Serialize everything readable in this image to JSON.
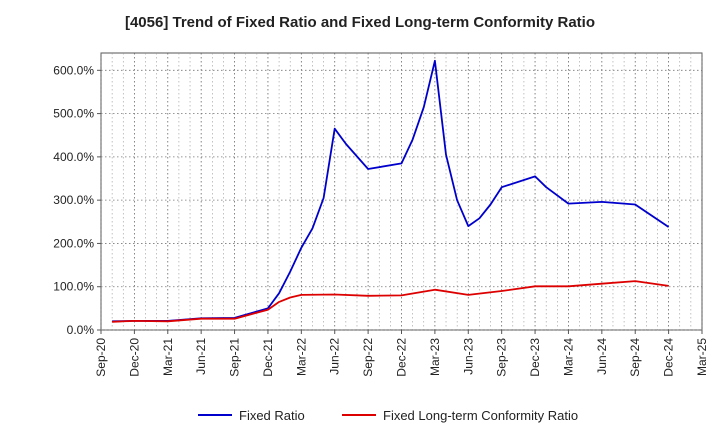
{
  "chart_data": {
    "type": "line",
    "title": "[4056]  Trend of Fixed Ratio and Fixed Long-term Conformity Ratio",
    "xlabel": "",
    "ylabel": "",
    "x_ticks": [
      "Sep-20",
      "Dec-20",
      "Mar-21",
      "Jun-21",
      "Sep-21",
      "Dec-21",
      "Mar-22",
      "Jun-22",
      "Sep-22",
      "Dec-22",
      "Mar-23",
      "Jun-23",
      "Sep-23",
      "Dec-23",
      "Mar-24",
      "Jun-24",
      "Sep-24",
      "Dec-24",
      "Mar-25"
    ],
    "xlim": [
      "2020-09",
      "2025-03"
    ],
    "y_ticks": [
      "0.0%",
      "100.0%",
      "200.0%",
      "300.0%",
      "400.0%",
      "500.0%",
      "600.0%"
    ],
    "ylim": [
      0,
      640
    ],
    "grid": true,
    "legend_position": "bottom",
    "series": [
      {
        "name": "Fixed Ratio",
        "color": "#0000cc",
        "points": [
          [
            "2020-10",
            20
          ],
          [
            "2020-12",
            21
          ],
          [
            "2021-03",
            21
          ],
          [
            "2021-06",
            27
          ],
          [
            "2021-09",
            28
          ],
          [
            "2021-12",
            50
          ],
          [
            "2022-01",
            85
          ],
          [
            "2022-02",
            135
          ],
          [
            "2022-03",
            190
          ],
          [
            "2022-04",
            235
          ],
          [
            "2022-05",
            305
          ],
          [
            "2022-06",
            465
          ],
          [
            "2022-07",
            430
          ],
          [
            "2022-09",
            372
          ],
          [
            "2022-12",
            385
          ],
          [
            "2023-01",
            440
          ],
          [
            "2023-02",
            515
          ],
          [
            "2023-03",
            622
          ],
          [
            "2023-04",
            405
          ],
          [
            "2023-05",
            300
          ],
          [
            "2023-06",
            240
          ],
          [
            "2023-07",
            258
          ],
          [
            "2023-08",
            290
          ],
          [
            "2023-09",
            330
          ],
          [
            "2023-12",
            355
          ],
          [
            "2024-01",
            330
          ],
          [
            "2024-03",
            292
          ],
          [
            "2024-06",
            296
          ],
          [
            "2024-09",
            290
          ],
          [
            "2024-12",
            238
          ]
        ]
      },
      {
        "name": "Fixed Long-term Conformity Ratio",
        "color": "#dd0000",
        "points": [
          [
            "2020-10",
            19
          ],
          [
            "2020-12",
            21
          ],
          [
            "2021-03",
            20
          ],
          [
            "2021-06",
            26
          ],
          [
            "2021-09",
            26
          ],
          [
            "2021-12",
            47
          ],
          [
            "2022-01",
            65
          ],
          [
            "2022-02",
            75
          ],
          [
            "2022-03",
            81
          ],
          [
            "2022-06",
            82
          ],
          [
            "2022-09",
            79
          ],
          [
            "2022-12",
            80
          ],
          [
            "2023-03",
            93
          ],
          [
            "2023-06",
            81
          ],
          [
            "2023-09",
            90
          ],
          [
            "2023-12",
            101
          ],
          [
            "2024-03",
            101
          ],
          [
            "2024-06",
            107
          ],
          [
            "2024-09",
            113
          ],
          [
            "2024-12",
            102
          ]
        ]
      }
    ]
  }
}
